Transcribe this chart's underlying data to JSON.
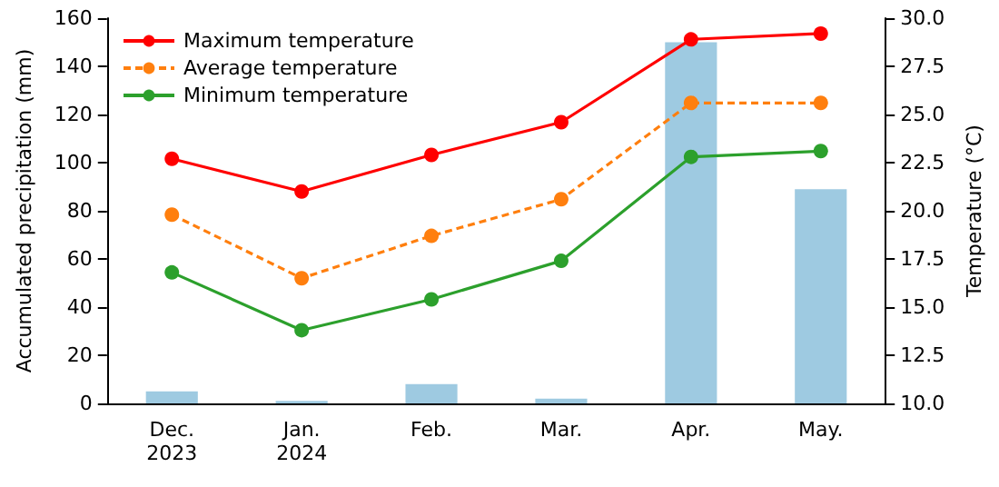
{
  "chart_data": {
    "type": "bar",
    "categories": [
      "Dec.\n2023",
      "Jan.\n2024",
      "Feb.",
      "Mar.",
      "Apr.",
      "May."
    ],
    "ylabel": "Accumulated precipitation (mm)",
    "y2label": "Temperature (°C)",
    "series": [
      {
        "color": "#9ecae1",
        "values": [
          5,
          1,
          8,
          2,
          150,
          89
        ]
      },
      {
        "type": "line",
        "axis": "y2",
        "name": "Maximum temperature",
        "color": "#ff0000",
        "line_style": "solid",
        "values": [
          22.7,
          21.0,
          22.9,
          24.6,
          28.9,
          29.2
        ]
      },
      {
        "type": "line",
        "axis": "y2",
        "name": "Average temperature",
        "color": "#ff7f0e",
        "line_style": "dashed",
        "values": [
          19.8,
          16.5,
          18.7,
          20.6,
          25.6,
          25.6
        ]
      },
      {
        "type": "line",
        "axis": "y2",
        "name": "Minimum temperature",
        "color": "#2ca02c",
        "line_style": "solid",
        "values": [
          16.8,
          13.8,
          15.4,
          17.4,
          22.8,
          23.1
        ]
      }
    ],
    "ylim": [
      0,
      160
    ],
    "yticks": [
      0,
      20,
      40,
      60,
      80,
      100,
      120,
      140,
      160
    ],
    "y2lim": [
      10,
      30
    ],
    "y2ticks": [
      {
        "value": 10,
        "label": "10.0"
      },
      {
        "value": 12.5,
        "label": "12.5"
      },
      {
        "value": 15,
        "label": "15.0"
      },
      {
        "value": 17.5,
        "label": "17.5"
      },
      {
        "value": 20,
        "label": "20.0"
      },
      {
        "value": 22.5,
        "label": "22.5"
      },
      {
        "value": 25,
        "label": "25.0"
      },
      {
        "value": 27.5,
        "label": "27.5"
      },
      {
        "value": 30,
        "label": "30.0"
      }
    ],
    "marker": "circle",
    "grid": false,
    "legend": "top left"
  }
}
